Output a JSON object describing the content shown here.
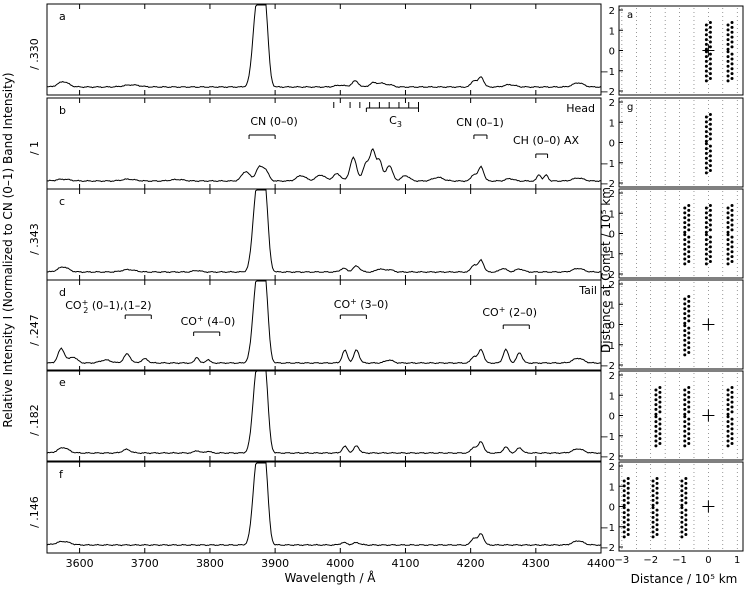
{
  "chart_data": [
    {
      "type": "line",
      "title": "",
      "xlabel": "Wavelength / Å",
      "ylabel": "Relative Intensity I (Normalized to CN (0–1) Band Intensity)",
      "xlim": [
        3550,
        4400
      ],
      "x_ticks": [
        3600,
        3700,
        3800,
        3900,
        4000,
        4100,
        4200,
        4300,
        4400
      ],
      "panels": [
        {
          "letter": "a",
          "scale": "/ .330",
          "extra": "",
          "features": [
            {
              "x": 3575,
              "y": 0.18,
              "w": 8
            },
            {
              "x": 3680,
              "y": 0.07,
              "w": 12
            },
            {
              "x": 3872,
              "y": 2.8,
              "w": 6
            },
            {
              "x": 3884,
              "y": 2.8,
              "w": 5
            },
            {
              "x": 4000,
              "y": 0.06,
              "w": 8
            },
            {
              "x": 4023,
              "y": 0.2,
              "w": 5
            },
            {
              "x": 4050,
              "y": 0.14,
              "w": 5
            },
            {
              "x": 4062,
              "y": 0.12,
              "w": 5
            },
            {
              "x": 4075,
              "y": 0.08,
              "w": 6
            },
            {
              "x": 4205,
              "y": 0.22,
              "w": 4
            },
            {
              "x": 4216,
              "y": 0.34,
              "w": 4
            },
            {
              "x": 4260,
              "y": 0.08,
              "w": 8
            },
            {
              "x": 4365,
              "y": 0.14,
              "w": 8
            }
          ]
        },
        {
          "letter": "b",
          "scale": "/ 1",
          "extra": "Head",
          "features": [
            {
              "x": 3575,
              "y": 0.06,
              "w": 10
            },
            {
              "x": 3675,
              "y": 0.06,
              "w": 10
            },
            {
              "x": 3750,
              "y": 0.05,
              "w": 10
            },
            {
              "x": 3855,
              "y": 0.32,
              "w": 6
            },
            {
              "x": 3875,
              "y": 0.42,
              "w": 5
            },
            {
              "x": 3885,
              "y": 0.36,
              "w": 5
            },
            {
              "x": 3940,
              "y": 0.18,
              "w": 7
            },
            {
              "x": 3970,
              "y": 0.2,
              "w": 7
            },
            {
              "x": 3995,
              "y": 0.24,
              "w": 6
            },
            {
              "x": 4020,
              "y": 0.78,
              "w": 5
            },
            {
              "x": 4040,
              "y": 0.6,
              "w": 5
            },
            {
              "x": 4050,
              "y": 0.95,
              "w": 4
            },
            {
              "x": 4060,
              "y": 0.7,
              "w": 4
            },
            {
              "x": 4075,
              "y": 0.52,
              "w": 5
            },
            {
              "x": 4100,
              "y": 0.18,
              "w": 6
            },
            {
              "x": 4150,
              "y": 0.12,
              "w": 8
            },
            {
              "x": 4205,
              "y": 0.22,
              "w": 4
            },
            {
              "x": 4216,
              "y": 0.48,
              "w": 4
            },
            {
              "x": 4260,
              "y": 0.08,
              "w": 6
            },
            {
              "x": 4305,
              "y": 0.22,
              "w": 3
            },
            {
              "x": 4316,
              "y": 0.2,
              "w": 3
            },
            {
              "x": 4365,
              "y": 0.1,
              "w": 8
            }
          ]
        },
        {
          "letter": "c",
          "scale": "/ .343",
          "extra": "",
          "features": [
            {
              "x": 3575,
              "y": 0.17,
              "w": 8
            },
            {
              "x": 3675,
              "y": 0.08,
              "w": 10
            },
            {
              "x": 3780,
              "y": 0.05,
              "w": 6
            },
            {
              "x": 3872,
              "y": 2.8,
              "w": 6
            },
            {
              "x": 3884,
              "y": 2.8,
              "w": 5
            },
            {
              "x": 4005,
              "y": 0.12,
              "w": 5
            },
            {
              "x": 4025,
              "y": 0.2,
              "w": 5
            },
            {
              "x": 4060,
              "y": 0.1,
              "w": 5
            },
            {
              "x": 4075,
              "y": 0.08,
              "w": 6
            },
            {
              "x": 4205,
              "y": 0.24,
              "w": 4
            },
            {
              "x": 4216,
              "y": 0.4,
              "w": 4
            },
            {
              "x": 4250,
              "y": 0.12,
              "w": 5
            },
            {
              "x": 4275,
              "y": 0.1,
              "w": 6
            },
            {
              "x": 4365,
              "y": 0.12,
              "w": 8
            }
          ]
        },
        {
          "letter": "d",
          "scale": "/ .247",
          "extra": "Tail",
          "features": [
            {
              "x": 3572,
              "y": 0.48,
              "w": 5
            },
            {
              "x": 3590,
              "y": 0.2,
              "w": 6
            },
            {
              "x": 3640,
              "y": 0.1,
              "w": 8
            },
            {
              "x": 3673,
              "y": 0.3,
              "w": 5
            },
            {
              "x": 3700,
              "y": 0.14,
              "w": 5
            },
            {
              "x": 3780,
              "y": 0.2,
              "w": 3
            },
            {
              "x": 3797,
              "y": 0.12,
              "w": 3
            },
            {
              "x": 3872,
              "y": 2.8,
              "w": 6
            },
            {
              "x": 3884,
              "y": 2.8,
              "w": 5
            },
            {
              "x": 4007,
              "y": 0.42,
              "w": 4
            },
            {
              "x": 4025,
              "y": 0.44,
              "w": 4
            },
            {
              "x": 4075,
              "y": 0.1,
              "w": 6
            },
            {
              "x": 4205,
              "y": 0.22,
              "w": 4
            },
            {
              "x": 4216,
              "y": 0.45,
              "w": 4
            },
            {
              "x": 4254,
              "y": 0.45,
              "w": 4
            },
            {
              "x": 4275,
              "y": 0.35,
              "w": 4
            },
            {
              "x": 4365,
              "y": 0.16,
              "w": 8
            }
          ]
        },
        {
          "letter": "e",
          "scale": "/ .182",
          "extra": "",
          "features": [
            {
              "x": 3575,
              "y": 0.18,
              "w": 8
            },
            {
              "x": 3672,
              "y": 0.12,
              "w": 6
            },
            {
              "x": 3780,
              "y": 0.08,
              "w": 4
            },
            {
              "x": 3797,
              "y": 0.06,
              "w": 4
            },
            {
              "x": 3872,
              "y": 2.8,
              "w": 6
            },
            {
              "x": 3884,
              "y": 2.8,
              "w": 5
            },
            {
              "x": 4007,
              "y": 0.22,
              "w": 4
            },
            {
              "x": 4025,
              "y": 0.24,
              "w": 4
            },
            {
              "x": 4205,
              "y": 0.2,
              "w": 4
            },
            {
              "x": 4216,
              "y": 0.38,
              "w": 4
            },
            {
              "x": 4254,
              "y": 0.2,
              "w": 4
            },
            {
              "x": 4275,
              "y": 0.18,
              "w": 4
            },
            {
              "x": 4365,
              "y": 0.14,
              "w": 8
            }
          ]
        },
        {
          "letter": "f",
          "scale": "/ .146",
          "extra": "",
          "features": [
            {
              "x": 3575,
              "y": 0.12,
              "w": 10
            },
            {
              "x": 3872,
              "y": 2.8,
              "w": 6
            },
            {
              "x": 3884,
              "y": 2.8,
              "w": 5
            },
            {
              "x": 4005,
              "y": 0.08,
              "w": 5
            },
            {
              "x": 4025,
              "y": 0.08,
              "w": 5
            },
            {
              "x": 4205,
              "y": 0.24,
              "w": 4
            },
            {
              "x": 4216,
              "y": 0.38,
              "w": 4
            },
            {
              "x": 4365,
              "y": 0.14,
              "w": 8
            }
          ]
        }
      ],
      "annotations": [
        {
          "panel": "b",
          "text": "CN (0–0)",
          "x1": 3860,
          "x2": 3900
        },
        {
          "panel": "b",
          "text": "C3",
          "x1": 4040,
          "x2": 4120
        },
        {
          "panel": "b",
          "text": "CN (0–1)",
          "x1": 4205,
          "x2": 4225
        },
        {
          "panel": "b",
          "text": "CH (0–0) AX",
          "x1": 4300,
          "x2": 4318
        },
        {
          "panel": "d",
          "text": "CO2+ (0–1),(1–2)",
          "x1": 3670,
          "x2": 3710
        },
        {
          "panel": "d",
          "text": "CO+ (4–0)",
          "x1": 3775,
          "x2": 3815
        },
        {
          "panel": "d",
          "text": "CO+ (3–0)",
          "x1": 4000,
          "x2": 4040
        },
        {
          "panel": "d",
          "text": "CO+ (2–0)",
          "x1": 4250,
          "x2": 4290
        }
      ],
      "text": {
        "xlabel": "Wavelength / Å",
        "ylabel_left": "Relative Intensity I (Normalized to CN (0–1) Band Intensity)",
        "panel_letters": [
          "a",
          "b",
          "c",
          "d",
          "e",
          "f"
        ],
        "scale_labels": [
          "/ .330",
          "/ 1",
          "/ .343",
          "/ .247",
          "/ .182",
          "/ .146"
        ],
        "head": "Head",
        "tail": "Tail",
        "cn00": "CN (0–0)",
        "c3": "C",
        "c3_sub": "3",
        "cn01": "CN (0–1)",
        "ch": "CH (0–0) AX",
        "co2": "CO",
        "co2_sub": "2",
        "co2_sup": "+",
        "co2_bands": "(0–1),(1–2)",
        "co40": "CO",
        "co40_sup": "+",
        "co40_band": "(4–0)",
        "co30": "CO",
        "co30_sup": "+",
        "co30_band": "(3–0)",
        "co20": "CO",
        "co20_sup": "+",
        "co20_band": "(2–0)",
        "x_ticks": [
          "3600",
          "3700",
          "3800",
          "3900",
          "4000",
          "4100",
          "4200",
          "4300",
          "4400"
        ]
      }
    },
    {
      "type": "scatter",
      "title": "",
      "xlabel": "Distance / 10⁵ km",
      "ylabel": "Distance at Comet / 10⁵ km",
      "xlim": [
        -3.1,
        1.2
      ],
      "ylim": [
        -2,
        2
      ],
      "x_ticks": [
        "−3",
        "−2",
        "−1",
        "0",
        "1"
      ],
      "y_ticks": [
        "2",
        "1",
        "0",
        "−1",
        "−2"
      ],
      "panels": [
        {
          "label": "a",
          "slit_columns": [
            0.0,
            0.75
          ],
          "comet_cross": true
        },
        {
          "label": "g",
          "slit_columns": [
            0.0
          ],
          "comet_cross": false
        },
        {
          "label": "",
          "slit_columns": [
            -0.75,
            0.0,
            0.75
          ],
          "comet_cross": false
        },
        {
          "label": "",
          "slit_columns": [
            -0.75
          ],
          "comet_cross": true
        },
        {
          "label": "",
          "slit_columns": [
            -1.75,
            -0.75,
            0.75
          ],
          "comet_cross": true
        },
        {
          "label": "",
          "slit_columns": [
            -2.85,
            -1.85,
            -0.85
          ],
          "comet_cross": true
        }
      ]
    }
  ]
}
